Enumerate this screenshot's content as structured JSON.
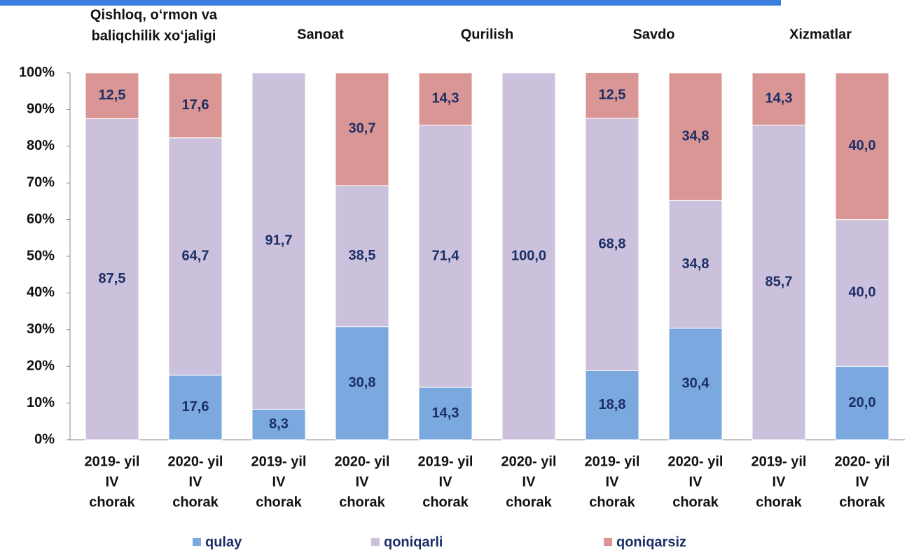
{
  "chart_data": {
    "type": "stacked_bar",
    "categories": [
      [
        "2019- yil",
        "IV",
        "chorak"
      ],
      [
        "2020- yil",
        "IV",
        "chorak"
      ],
      [
        "2019- yil",
        "IV",
        "chorak"
      ],
      [
        "2020- yil",
        "IV",
        "chorak"
      ],
      [
        "2019- yil",
        "IV",
        "chorak"
      ],
      [
        "2020- yil",
        "IV",
        "chorak"
      ],
      [
        "2019- yil",
        "IV",
        "chorak"
      ],
      [
        "2020- yil",
        "IV",
        "chorak"
      ],
      [
        "2019- yil",
        "IV",
        "chorak"
      ],
      [
        "2020- yil",
        "IV",
        "chorak"
      ]
    ],
    "groups": [
      [
        "Qishloq, o‘rmon va",
        "baliqchilik xo‘jaligi"
      ],
      [
        "Sanoat"
      ],
      [
        "Qurilish"
      ],
      [
        "Savdo"
      ],
      [
        "Xizmatlar"
      ]
    ],
    "series": [
      {
        "name": "qulay",
        "color": "#7aa8df",
        "values": [
          0,
          17.6,
          8.3,
          30.8,
          14.3,
          0,
          18.8,
          30.4,
          0,
          20.0
        ],
        "value_labels": [
          null,
          "17,6",
          "8,3",
          "30,8",
          "14,3",
          null,
          "18,8",
          "30,4",
          null,
          "20,0"
        ]
      },
      {
        "name": "qoniqarli",
        "color": "#ccc1dd",
        "values": [
          87.5,
          64.7,
          91.7,
          38.5,
          71.4,
          100.0,
          68.8,
          34.8,
          85.7,
          40.0
        ],
        "value_labels": [
          "87,5",
          "64,7",
          "91,7",
          "38,5",
          "71,4",
          "100,0",
          "68,8",
          "34,8",
          "85,7",
          "40,0"
        ]
      },
      {
        "name": "qoniqarsiz",
        "color": "#da9694",
        "values": [
          12.5,
          17.6,
          0,
          30.7,
          14.3,
          0,
          12.5,
          34.8,
          14.3,
          40.0
        ],
        "value_labels": [
          "12,5",
          "17,6",
          null,
          "30,7",
          "14,3",
          null,
          "12,5",
          "34,8",
          "14,3",
          "40,0"
        ]
      }
    ],
    "ylim": [
      0,
      100
    ],
    "yticks": [
      {
        "value": 0,
        "label": "0%"
      },
      {
        "value": 10,
        "label": "10%"
      },
      {
        "value": 20,
        "label": "20%"
      },
      {
        "value": 30,
        "label": "30%"
      },
      {
        "value": 40,
        "label": "40%"
      },
      {
        "value": 50,
        "label": "50%"
      },
      {
        "value": 60,
        "label": "60%"
      },
      {
        "value": 70,
        "label": "70%"
      },
      {
        "value": 80,
        "label": "80%"
      },
      {
        "value": 90,
        "label": "90%"
      },
      {
        "value": 100,
        "label": "100%"
      }
    ],
    "legend": "bottom"
  }
}
